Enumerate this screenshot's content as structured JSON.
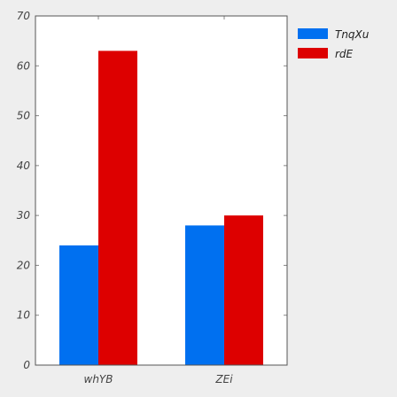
{
  "chart_data": {
    "type": "bar",
    "categories": [
      "whYB",
      "ZEi"
    ],
    "series": [
      {
        "name": "TnqXu",
        "values": [
          24,
          28
        ],
        "color": "#0070f0"
      },
      {
        "name": "rdE",
        "values": [
          63,
          30
        ],
        "color": "#dd0000"
      }
    ],
    "ylim": [
      0,
      70
    ],
    "yticks": [
      0,
      10,
      20,
      30,
      40,
      50,
      60,
      70
    ],
    "xlabel": "",
    "ylabel": "",
    "title": "",
    "grid": false,
    "legend_position": "top-right"
  }
}
